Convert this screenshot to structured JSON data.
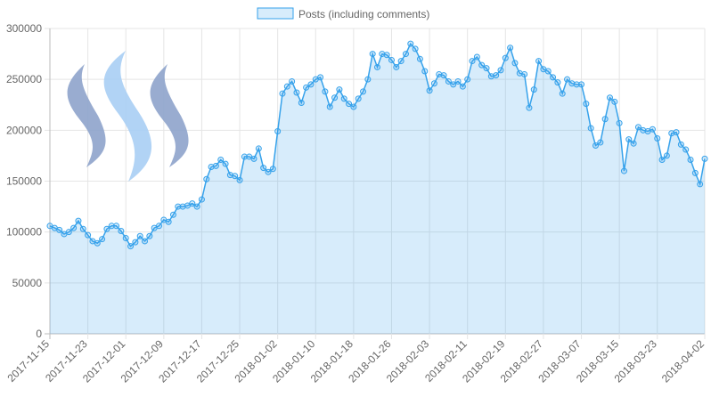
{
  "chart_data": {
    "type": "line",
    "categories": [
      "2017-11-15",
      null,
      null,
      null,
      null,
      null,
      null,
      null,
      "2017-11-23",
      null,
      null,
      null,
      null,
      null,
      null,
      null,
      "2017-12-01",
      null,
      null,
      null,
      null,
      null,
      null,
      null,
      "2017-12-09",
      null,
      null,
      null,
      null,
      null,
      null,
      null,
      "2017-12-17",
      null,
      null,
      null,
      null,
      null,
      null,
      null,
      "2017-12-25",
      null,
      null,
      null,
      null,
      null,
      null,
      null,
      "2018-01-02",
      null,
      null,
      null,
      null,
      null,
      null,
      null,
      "2018-01-10",
      null,
      null,
      null,
      null,
      null,
      null,
      null,
      "2018-01-18",
      null,
      null,
      null,
      null,
      null,
      null,
      null,
      "2018-01-26",
      null,
      null,
      null,
      null,
      null,
      null,
      null,
      "2018-02-03",
      null,
      null,
      null,
      null,
      null,
      null,
      null,
      "2018-02-11",
      null,
      null,
      null,
      null,
      null,
      null,
      null,
      "2018-02-19",
      null,
      null,
      null,
      null,
      null,
      null,
      null,
      "2018-02-27",
      null,
      null,
      null,
      null,
      null,
      null,
      null,
      "2018-03-07",
      null,
      null,
      null,
      null,
      null,
      null,
      null,
      "2018-03-15",
      null,
      null,
      null,
      null,
      null,
      null,
      null,
      "2018-03-23",
      null,
      null,
      null,
      null,
      null,
      null,
      null,
      null,
      null,
      "2018-04-02"
    ],
    "series": [
      {
        "name": "Posts (including comments)",
        "color": "#36a2eb",
        "fill": "rgba(54,162,235,0.2)",
        "values": [
          106000,
          104000,
          102000,
          98000,
          100000,
          104000,
          111000,
          103000,
          97000,
          91000,
          89000,
          93000,
          103000,
          106000,
          106000,
          101000,
          94000,
          86000,
          90000,
          96000,
          91000,
          96000,
          104000,
          106000,
          112000,
          110000,
          117000,
          125000,
          125000,
          126000,
          128000,
          125000,
          132000,
          152000,
          164000,
          165000,
          171000,
          167000,
          156000,
          155000,
          151000,
          174000,
          174000,
          172000,
          182000,
          163000,
          159000,
          162000,
          199000,
          236000,
          243000,
          248000,
          237000,
          227000,
          242000,
          245000,
          250000,
          252000,
          238000,
          223000,
          232000,
          240000,
          231000,
          226000,
          223000,
          231000,
          238000,
          250000,
          275000,
          262000,
          275000,
          274000,
          269000,
          262000,
          268000,
          275000,
          285000,
          280000,
          270000,
          258000,
          239000,
          246000,
          255000,
          254000,
          248000,
          245000,
          248000,
          243000,
          250000,
          268000,
          272000,
          264000,
          261000,
          253000,
          254000,
          259000,
          271000,
          281000,
          266000,
          256000,
          255000,
          222000,
          240000,
          268000,
          260000,
          258000,
          252000,
          247000,
          236000,
          250000,
          246000,
          245000,
          245000,
          226000,
          202000,
          185000,
          188000,
          211000,
          232000,
          228000,
          207000,
          160000,
          191000,
          187000,
          203000,
          200000,
          199000,
          201000,
          192000,
          171000,
          175000,
          197000,
          198000,
          186000,
          181000,
          171000,
          158000,
          147000,
          172000
        ]
      }
    ],
    "ylim": [
      0,
      300000
    ],
    "yticks": [
      0,
      50000,
      100000,
      150000,
      200000,
      250000,
      300000
    ],
    "grid": true,
    "legend": "top"
  }
}
